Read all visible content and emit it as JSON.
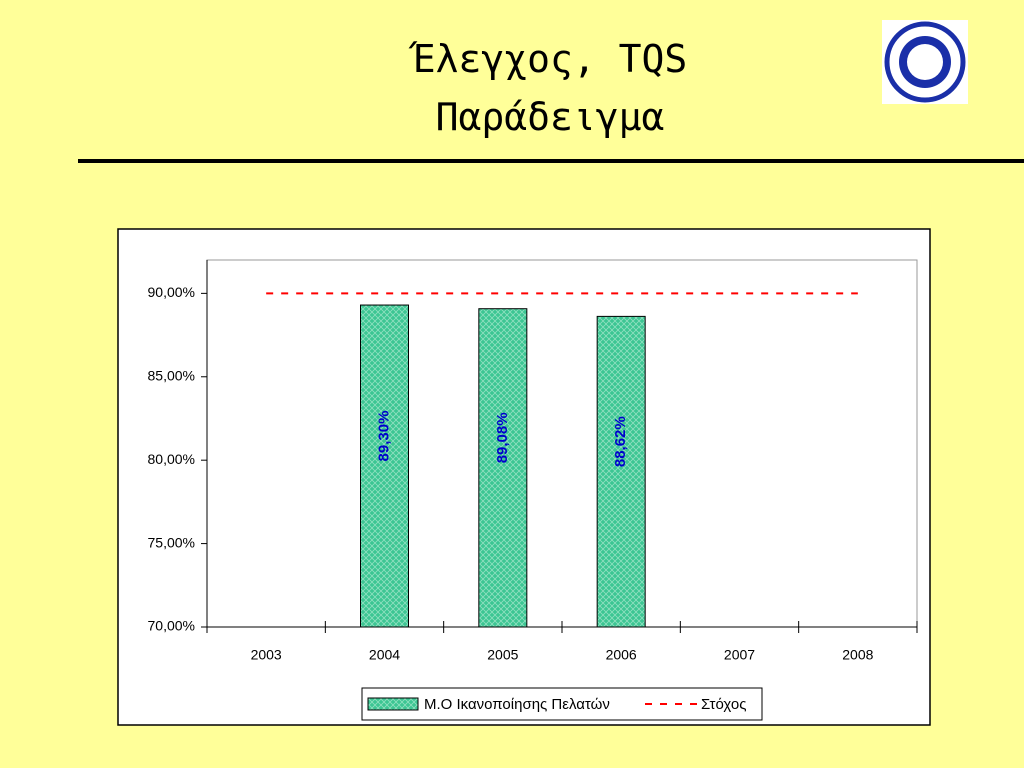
{
  "slide": {
    "title_lines": [
      "Έλεγχος, TQS",
      "Παράδειγμα"
    ]
  },
  "chart_data": {
    "type": "bar",
    "categories": [
      "2003",
      "2004",
      "2005",
      "2006",
      "2007",
      "2008"
    ],
    "series": [
      {
        "name": "Μ.Ο Ικανοποίησης Πελατών",
        "color": "#3cc693",
        "values": [
          null,
          89.3,
          89.08,
          88.62,
          null,
          null
        ],
        "value_labels": [
          null,
          "89,30%",
          "89,08%",
          "88,62%",
          null,
          null
        ],
        "label_color": "#0000cc"
      },
      {
        "name": "Στόχος",
        "type": "line",
        "dashed": true,
        "color": "#ff0000",
        "values": [
          90,
          90,
          90,
          90,
          90,
          90
        ]
      }
    ],
    "ylim": [
      70,
      92
    ],
    "yticks": [
      {
        "value": 70,
        "label": "70,00%"
      },
      {
        "value": 75,
        "label": "75,00%"
      },
      {
        "value": 80,
        "label": "80,00%"
      },
      {
        "value": 85,
        "label": "85,00%"
      },
      {
        "value": 90,
        "label": "90,00%"
      }
    ],
    "grid": false,
    "legend": "bottom"
  }
}
